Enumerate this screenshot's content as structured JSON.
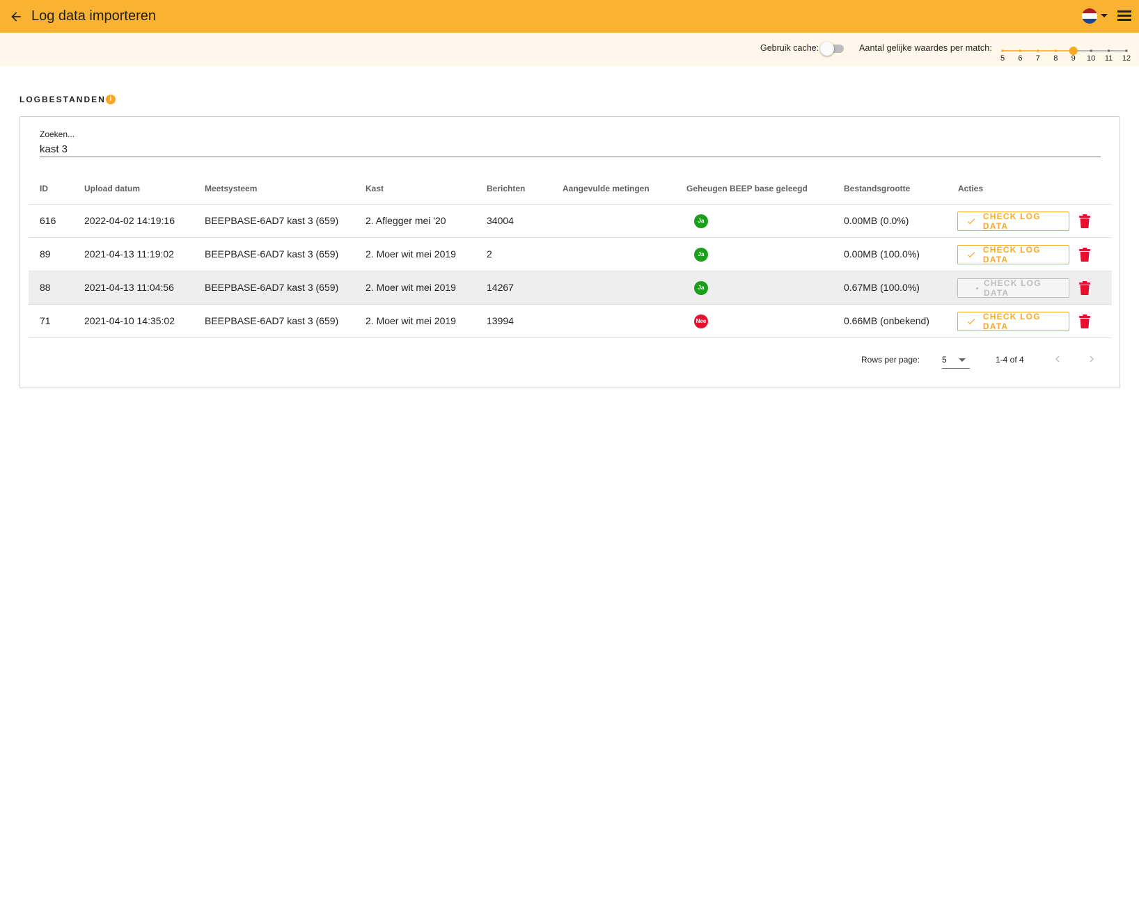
{
  "appbar": {
    "title": "Log data importeren",
    "back_icon": "arrow-left-icon",
    "language_flag": "netherlands-flag-icon",
    "menu_icon": "hamburger-menu-icon",
    "color": "#f9b232"
  },
  "settings": {
    "cache_label": "Gebruik cache:",
    "cache_enabled": false,
    "slider_label": "Aantal gelijke waardes per match:",
    "slider_ticks": [
      "5",
      "6",
      "7",
      "8",
      "9",
      "10",
      "11",
      "12"
    ],
    "slider_value": 9,
    "slider_min": 5,
    "slider_max": 12
  },
  "section": {
    "title": "LOGBESTANDEN",
    "info_icon": "info-icon"
  },
  "search": {
    "label": "Zoeken...",
    "value": "kast 3"
  },
  "table": {
    "headers": {
      "id": "ID",
      "upload": "Upload datum",
      "system": "Meetsysteem",
      "hive": "Kast",
      "messages": "Berichten",
      "filled": "Aangevulde metingen",
      "memory": "Geheugen BEEP base geleegd",
      "size": "Bestandsgrootte",
      "actions": "Acties"
    },
    "rows": [
      {
        "id": "616",
        "upload": "2022-04-02 14:19:16",
        "system": "BEEPBASE-6AD7 kast 3 (659)",
        "hive": "2. Aflegger mei '20",
        "messages": "34004",
        "filled": "",
        "memory": "Ja",
        "size": "0.00MB (0.0%)",
        "action": "CHECK LOG DATA"
      },
      {
        "id": "89",
        "upload": "2021-04-13 11:19:02",
        "system": "BEEPBASE-6AD7 kast 3 (659)",
        "hive": "2. Moer wit mei 2019",
        "messages": "2",
        "filled": "",
        "memory": "Ja",
        "size": "0.00MB (100.0%)",
        "action": "CHECK LOG DATA"
      },
      {
        "id": "88",
        "upload": "2021-04-13 11:04:56",
        "system": "BEEPBASE-6AD7 kast 3 (659)",
        "hive": "2. Moer wit mei 2019",
        "messages": "14267",
        "filled": "",
        "memory": "Ja",
        "size": "0.67MB (100.0%)",
        "action": "CHECK LOG DATA"
      },
      {
        "id": "71",
        "upload": "2021-04-10 14:35:02",
        "system": "BEEPBASE-6AD7 kast 3 (659)",
        "hive": "2. Moer wit mei 2019",
        "messages": "13994",
        "filled": "",
        "memory": "Nee",
        "size": "0.66MB (onbekend)",
        "action": "CHECK LOG DATA"
      }
    ]
  },
  "pagination": {
    "rows_per_page_label": "Rows per page:",
    "rows_per_page": "5",
    "range": "1-4 of 4"
  },
  "colors": {
    "accent": "#f9a825",
    "yes": "#1b9e1b",
    "no": "#e8112d",
    "delete": "#e8112d"
  }
}
